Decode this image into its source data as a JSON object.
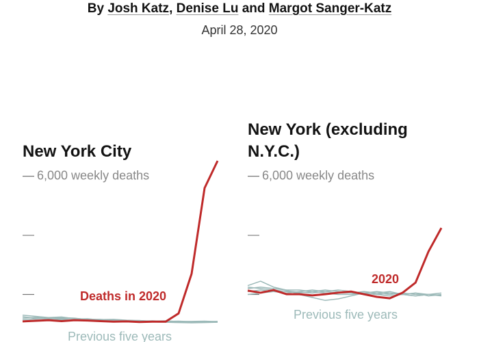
{
  "byline": {
    "prefix": "By",
    "authors": [
      "Josh Katz",
      "Denise Lu",
      "Margot Sanger-Katz"
    ],
    "separator": ",",
    "conjunction": "and"
  },
  "date": "April 28, 2020",
  "chart_data": [
    {
      "type": "line",
      "title": "New York City",
      "ylim": [
        0,
        6800
      ],
      "yticks": [
        {
          "value": 6000,
          "label": "6,000 weekly deaths"
        },
        4000,
        2000
      ],
      "series": [
        {
          "name": "Previous five years",
          "color": "#9dbab9",
          "values": [
            [
              1250,
              1200,
              1180,
              1220,
              1200,
              1150,
              1160,
              1120,
              1100,
              1110,
              1090,
              1080,
              1070,
              1060,
              1080,
              1090
            ],
            [
              1150,
              1180,
              1210,
              1170,
              1190,
              1160,
              1140,
              1130,
              1120,
              1100,
              1110,
              1090,
              1100,
              1080,
              1070,
              1060
            ],
            [
              1300,
              1260,
              1220,
              1240,
              1180,
              1170,
              1150,
              1160,
              1130,
              1120,
              1100,
              1110,
              1080,
              1090,
              1100,
              1080
            ],
            [
              1200,
              1230,
              1190,
              1200,
              1170,
              1180,
              1130,
              1140,
              1110,
              1120,
              1090,
              1100,
              1090,
              1070,
              1060,
              1090
            ],
            [
              1100,
              1140,
              1160,
              1150,
              1130,
              1140,
              1120,
              1110,
              1090,
              1080,
              1070,
              1060,
              1050,
              1040,
              1050,
              1060
            ]
          ]
        },
        {
          "name": "Deaths in 2020",
          "color": "#bf2a2a",
          "values": [
            1090,
            1110,
            1130,
            1100,
            1130,
            1120,
            1100,
            1080,
            1090,
            1070,
            1080,
            1080,
            1360,
            2700,
            5600,
            6520
          ]
        }
      ]
    },
    {
      "type": "line",
      "title": "New York (excluding N.Y.C.)",
      "ylim": [
        0,
        6800
      ],
      "yticks": [
        {
          "value": 6000,
          "label": "6,000 weekly deaths"
        },
        4000,
        2000
      ],
      "series": [
        {
          "name": "Previous five years",
          "color": "#9dbab9",
          "values": [
            [
              2300,
              2450,
              2250,
              2150,
              2000,
              1900,
              1800,
              1850,
              1950,
              2050,
              2000,
              1950,
              2000,
              2050,
              1950,
              2000
            ],
            [
              2100,
              2150,
              2100,
              2050,
              2100,
              2150,
              2100,
              2050,
              2050,
              2000,
              2050,
              2100,
              2000,
              1950,
              2000,
              1950
            ],
            [
              2200,
              2250,
              2200,
              2150,
              2150,
              2100,
              2150,
              2100,
              2050,
              2100,
              2050,
              2000,
              2050,
              2000,
              2000,
              1970
            ],
            [
              2000,
              2050,
              2100,
              2120,
              2080,
              2050,
              2100,
              2150,
              2100,
              2050,
              2000,
              2050,
              2000,
              2050,
              2000,
              2050
            ],
            [
              2250,
              2200,
              2150,
              2100,
              2050,
              2100,
              2050,
              2000,
              2000,
              2050,
              2100,
              2050,
              2000,
              1950,
              2000,
              1980
            ]
          ]
        },
        {
          "name": "2020",
          "color": "#bf2a2a",
          "values": [
            2130,
            2060,
            2150,
            2010,
            2010,
            1970,
            2010,
            2060,
            2100,
            2010,
            1920,
            1870,
            2060,
            2400,
            3450,
            4250
          ]
        }
      ]
    }
  ]
}
